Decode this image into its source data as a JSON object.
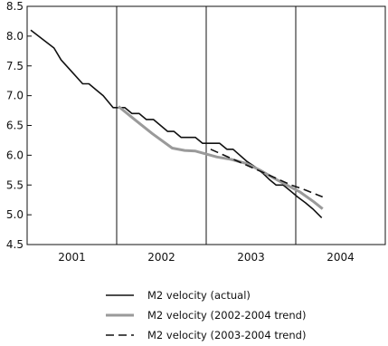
{
  "chart_data": {
    "type": "line",
    "title": "",
    "xlabel": "",
    "ylabel": "",
    "ylim": [
      4.5,
      8.5
    ],
    "yticks": [
      4.5,
      5.0,
      5.5,
      6.0,
      6.5,
      7.0,
      7.5,
      8.0,
      8.5
    ],
    "xlim": [
      2000.5,
      2004.5
    ],
    "x_categories": [
      "2001",
      "2002",
      "2003",
      "2004"
    ],
    "grid": false,
    "year_separators": [
      2001.5,
      2002.5,
      2003.5
    ],
    "legend_placement": "bottom-center",
    "series": [
      {
        "name": "M2 velocity (actual)",
        "style": "solid",
        "color": "#111111",
        "x": [
          2000.54,
          2000.8,
          2000.88,
          2001.0,
          2001.12,
          2001.19,
          2001.27,
          2001.35,
          2001.46,
          2001.52,
          2001.59,
          2001.67,
          2001.75,
          2001.83,
          2001.91,
          2001.99,
          2002.07,
          2002.14,
          2002.22,
          2002.3,
          2002.38,
          2002.46,
          2002.56,
          2002.65,
          2002.73,
          2002.8,
          2002.95,
          2003.05,
          2003.13,
          2003.2,
          2003.28,
          2003.36,
          2003.44,
          2003.52,
          2003.61,
          2003.69,
          2003.79
        ],
        "values": [
          8.1,
          7.8,
          7.6,
          7.4,
          7.2,
          7.2,
          7.1,
          7.0,
          6.8,
          6.8,
          6.8,
          6.7,
          6.7,
          6.6,
          6.6,
          6.5,
          6.4,
          6.4,
          6.3,
          6.3,
          6.3,
          6.2,
          6.2,
          6.2,
          6.1,
          6.1,
          5.9,
          5.8,
          5.7,
          5.6,
          5.5,
          5.5,
          5.4,
          5.3,
          5.2,
          5.1,
          4.95
        ]
      },
      {
        "name": "M2 velocity (2002-2004 trend)",
        "style": "solid",
        "color": "#9a9a9a",
        "x": [
          2001.52,
          2001.7,
          2001.9,
          2002.12,
          2002.26,
          2002.38,
          2002.5,
          2002.62,
          2002.78,
          2002.95,
          2003.1,
          2003.25,
          2003.4,
          2003.55,
          2003.7,
          2003.8
        ],
        "values": [
          6.82,
          6.6,
          6.36,
          6.12,
          6.08,
          6.07,
          6.02,
          5.97,
          5.93,
          5.86,
          5.75,
          5.62,
          5.5,
          5.38,
          5.22,
          5.1
        ]
      },
      {
        "name": "M2 velocity (2003-2004 trend)",
        "style": "dashed",
        "color": "#111111",
        "x": [
          2002.55,
          2002.7,
          2002.85,
          2003.0,
          2003.15,
          2003.3,
          2003.45,
          2003.6,
          2003.8
        ],
        "values": [
          6.1,
          6.0,
          5.9,
          5.8,
          5.7,
          5.6,
          5.5,
          5.42,
          5.3
        ]
      }
    ]
  }
}
